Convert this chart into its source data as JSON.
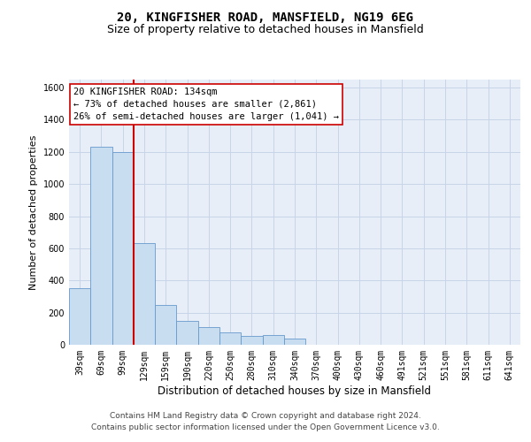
{
  "title": "20, KINGFISHER ROAD, MANSFIELD, NG19 6EG",
  "subtitle": "Size of property relative to detached houses in Mansfield",
  "xlabel": "Distribution of detached houses by size in Mansfield",
  "ylabel": "Number of detached properties",
  "footer_line1": "Contains HM Land Registry data © Crown copyright and database right 2024.",
  "footer_line2": "Contains public sector information licensed under the Open Government Licence v3.0.",
  "annotation_line1": "20 KINGFISHER ROAD: 134sqm",
  "annotation_line2": "← 73% of detached houses are smaller (2,861)",
  "annotation_line3": "26% of semi-detached houses are larger (1,041) →",
  "categories": [
    "39sqm",
    "69sqm",
    "99sqm",
    "129sqm",
    "159sqm",
    "190sqm",
    "220sqm",
    "250sqm",
    "280sqm",
    "310sqm",
    "340sqm",
    "370sqm",
    "400sqm",
    "430sqm",
    "460sqm",
    "491sqm",
    "521sqm",
    "551sqm",
    "581sqm",
    "611sqm",
    "641sqm"
  ],
  "values": [
    350,
    1230,
    1200,
    630,
    250,
    150,
    110,
    75,
    55,
    60,
    40,
    0,
    0,
    0,
    0,
    0,
    0,
    0,
    0,
    0,
    0
  ],
  "bar_color": "#c9ddf0",
  "bar_edge_color": "#6699cc",
  "vline_color": "#cc0000",
  "vline_x_index": 3,
  "ylim": [
    0,
    1650
  ],
  "yticks": [
    0,
    200,
    400,
    600,
    800,
    1000,
    1200,
    1400,
    1600
  ],
  "grid_color": "#c8d4e8",
  "background_color": "#e8eef8",
  "box_edge_color": "#cc0000",
  "title_fontsize": 10,
  "subtitle_fontsize": 9,
  "tick_fontsize": 7,
  "ylabel_fontsize": 8,
  "xlabel_fontsize": 8.5,
  "annotation_fontsize": 7.5,
  "footer_fontsize": 6.5
}
